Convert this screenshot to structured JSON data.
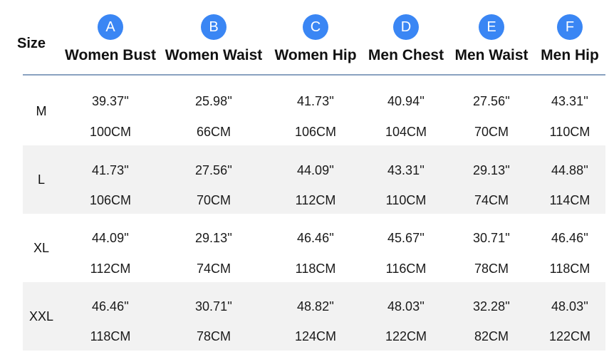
{
  "size_header": "Size",
  "columns": [
    {
      "badge": "A",
      "label": "Women Bust"
    },
    {
      "badge": "B",
      "label": "Women Waist"
    },
    {
      "badge": "C",
      "label": "Women Hip"
    },
    {
      "badge": "D",
      "label": "Men Chest"
    },
    {
      "badge": "E",
      "label": "Men Waist"
    },
    {
      "badge": "F",
      "label": "Men Hip"
    }
  ],
  "rows": [
    {
      "size": "M",
      "inches": [
        "39.37''",
        "25.98''",
        "41.73''",
        "40.94''",
        "27.56''",
        "43.31''"
      ],
      "cm": [
        "100CM",
        "66CM",
        "106CM",
        "104CM",
        "70CM",
        "110CM"
      ]
    },
    {
      "size": "L",
      "inches": [
        "41.73''",
        "27.56''",
        "44.09''",
        "43.31''",
        "29.13''",
        "44.88''"
      ],
      "cm": [
        "106CM",
        "70CM",
        "112CM",
        "110CM",
        "74CM",
        "114CM"
      ]
    },
    {
      "size": "XL",
      "inches": [
        "44.09''",
        "29.13''",
        "46.46''",
        "45.67''",
        "30.71''",
        "46.46''"
      ],
      "cm": [
        "112CM",
        "74CM",
        "118CM",
        "116CM",
        "78CM",
        "118CM"
      ]
    },
    {
      "size": "XXL",
      "inches": [
        "46.46''",
        "30.71''",
        "48.82''",
        "48.03''",
        "32.28''",
        "48.03''"
      ],
      "cm": [
        "118CM",
        "78CM",
        "124CM",
        "122CM",
        "82CM",
        "122CM"
      ]
    }
  ],
  "colors": {
    "badge": "#3a86f4",
    "shaded_row": "#f2f2f2",
    "header_rule": "#8aa2c0"
  }
}
